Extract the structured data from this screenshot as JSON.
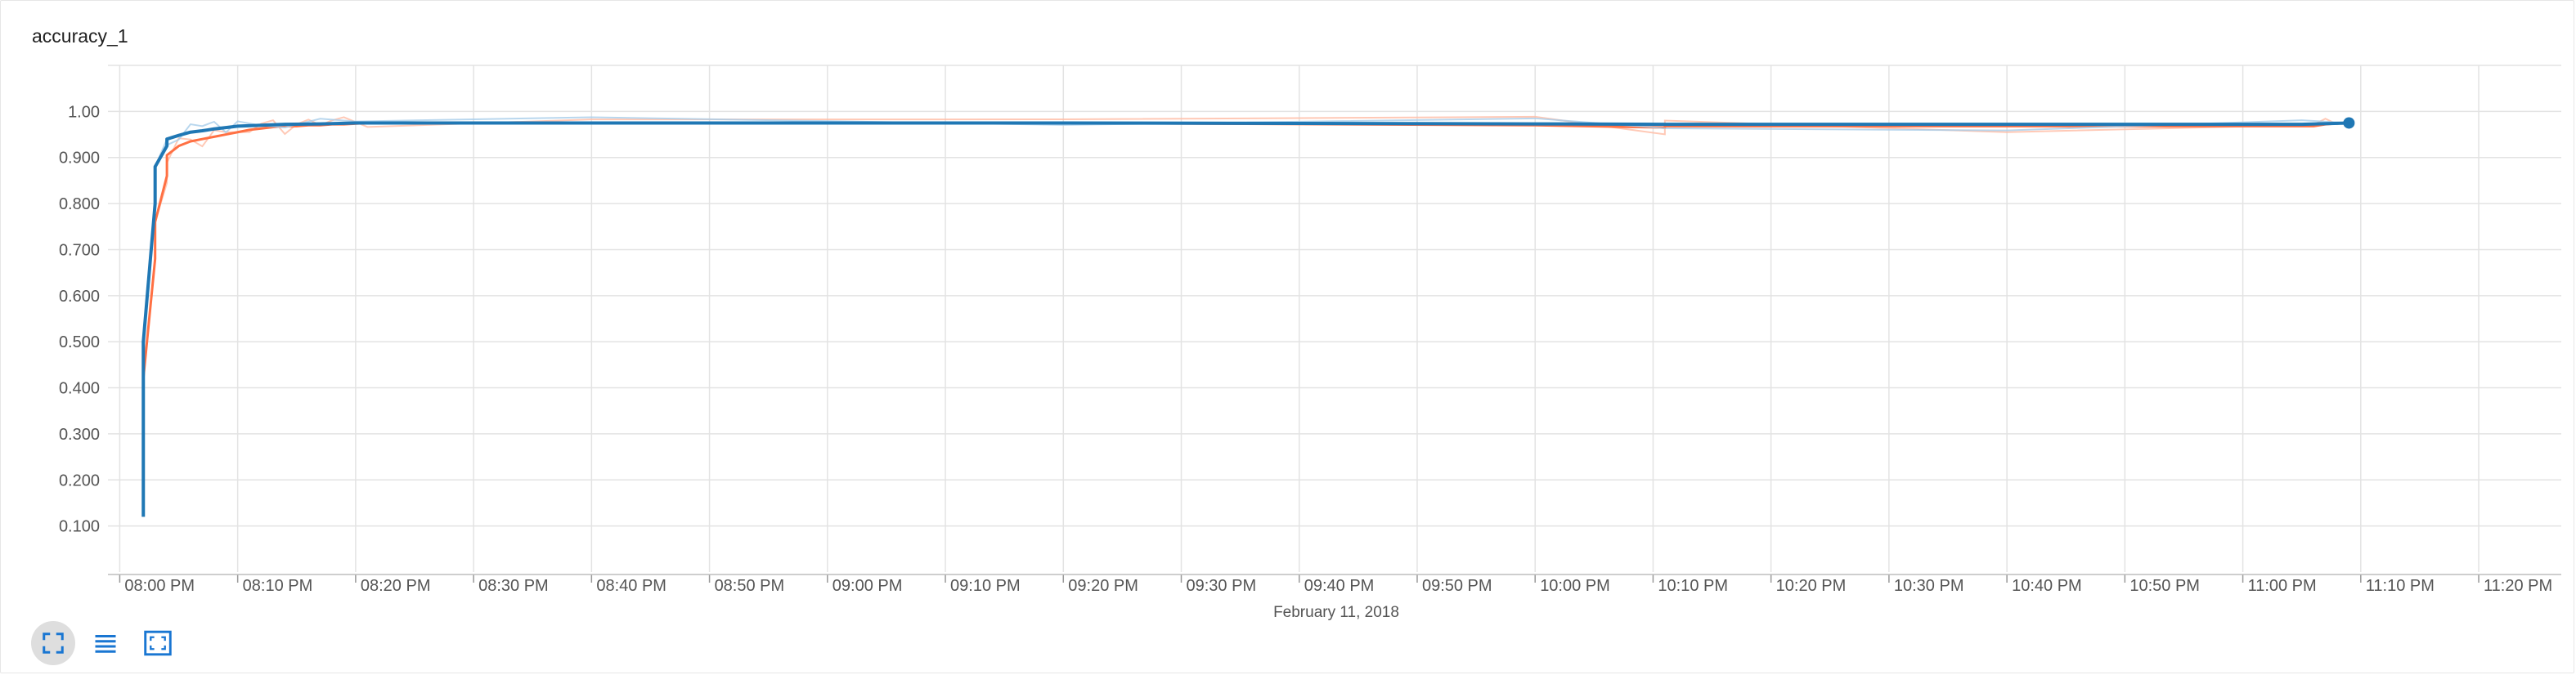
{
  "panel": {
    "title": "accuracy_1"
  },
  "colors": {
    "series_orange": "#ff7043",
    "series_orange_raw": "#ffbba4",
    "series_blue": "#1f77b4",
    "series_blue_raw": "#a8cdea",
    "grid": "#e3e3e3",
    "axis_text": "#555555",
    "toolbar_icon": "#1976d2"
  },
  "toolbar": {
    "buttons": [
      {
        "icon": "fullscreen-icon",
        "active": true
      },
      {
        "icon": "list-icon",
        "active": false
      },
      {
        "icon": "fit-domain-icon",
        "active": false
      }
    ]
  },
  "chart_data": {
    "type": "line",
    "title": "accuracy_1",
    "xlabel": "February 11, 2018",
    "ylabel": "",
    "x_axis_type": "time",
    "xlim": [
      "07:59 PM",
      "11:27 PM"
    ],
    "ylim": [
      0,
      1.1
    ],
    "grid": true,
    "x_ticks": [
      "08:00 PM",
      "08:10 PM",
      "08:20 PM",
      "08:30 PM",
      "08:40 PM",
      "08:50 PM",
      "09:00 PM",
      "09:10 PM",
      "09:20 PM",
      "09:30 PM",
      "09:40 PM",
      "09:50 PM",
      "10:00 PM",
      "10:10 PM",
      "10:20 PM",
      "10:30 PM",
      "10:40 PM",
      "10:50 PM",
      "11:00 PM",
      "11:10 PM",
      "11:20 PM"
    ],
    "y_ticks": [
      "0.100",
      "0.200",
      "0.300",
      "0.400",
      "0.500",
      "0.600",
      "0.700",
      "0.800",
      "0.900",
      "1.00"
    ],
    "series": [
      {
        "color": "#ff7043",
        "x": [
          "08:02 PM",
          "08:02 PM",
          "08:03 PM",
          "08:03 PM",
          "08:04 PM",
          "08:04 PM",
          "08:05 PM",
          "08:06 PM",
          "08:07 PM",
          "08:08 PM",
          "08:09 PM",
          "08:10 PM",
          "08:11 PM",
          "08:12 PM",
          "08:13 PM",
          "08:14 PM",
          "08:15 PM",
          "08:16 PM",
          "08:17 PM",
          "08:18 PM",
          "08:19 PM",
          "08:21 PM",
          "08:40 PM",
          "09:20 PM",
          "10:00 PM",
          "10:11 PM",
          "10:11 PM",
          "10:40 PM",
          "11:06 PM",
          "11:07 PM",
          "11:08 PM",
          "11:09 PM",
          "11:09 PM"
        ],
        "y": [
          0.12,
          0.42,
          0.68,
          0.76,
          0.86,
          0.905,
          0.925,
          0.935,
          0.94,
          0.945,
          0.95,
          0.955,
          0.96,
          0.963,
          0.966,
          0.968,
          0.968,
          0.97,
          0.97,
          0.972,
          0.972,
          0.975,
          0.975,
          0.975,
          0.97,
          0.965,
          0.968,
          0.968,
          0.968,
          0.972,
          0.974,
          0.975,
          0.975
        ]
      },
      {
        "color": "#1f77b4",
        "x": [
          "08:02 PM",
          "08:02 PM",
          "08:03 PM",
          "08:03 PM",
          "08:04 PM",
          "08:04 PM",
          "08:05 PM",
          "08:06 PM",
          "08:07 PM",
          "08:08 PM",
          "08:09 PM",
          "08:10 PM",
          "08:12 PM",
          "08:14 PM",
          "08:17 PM",
          "08:20 PM",
          "08:40 PM",
          "09:20 PM",
          "10:00 PM",
          "10:11 PM",
          "10:40 PM",
          "11:05 PM",
          "11:09 PM"
        ],
        "y": [
          0.12,
          0.5,
          0.8,
          0.88,
          0.925,
          0.94,
          0.948,
          0.955,
          0.958,
          0.962,
          0.965,
          0.968,
          0.97,
          0.972,
          0.973,
          0.975,
          0.975,
          0.975,
          0.973,
          0.972,
          0.972,
          0.972,
          0.975
        ]
      }
    ]
  }
}
